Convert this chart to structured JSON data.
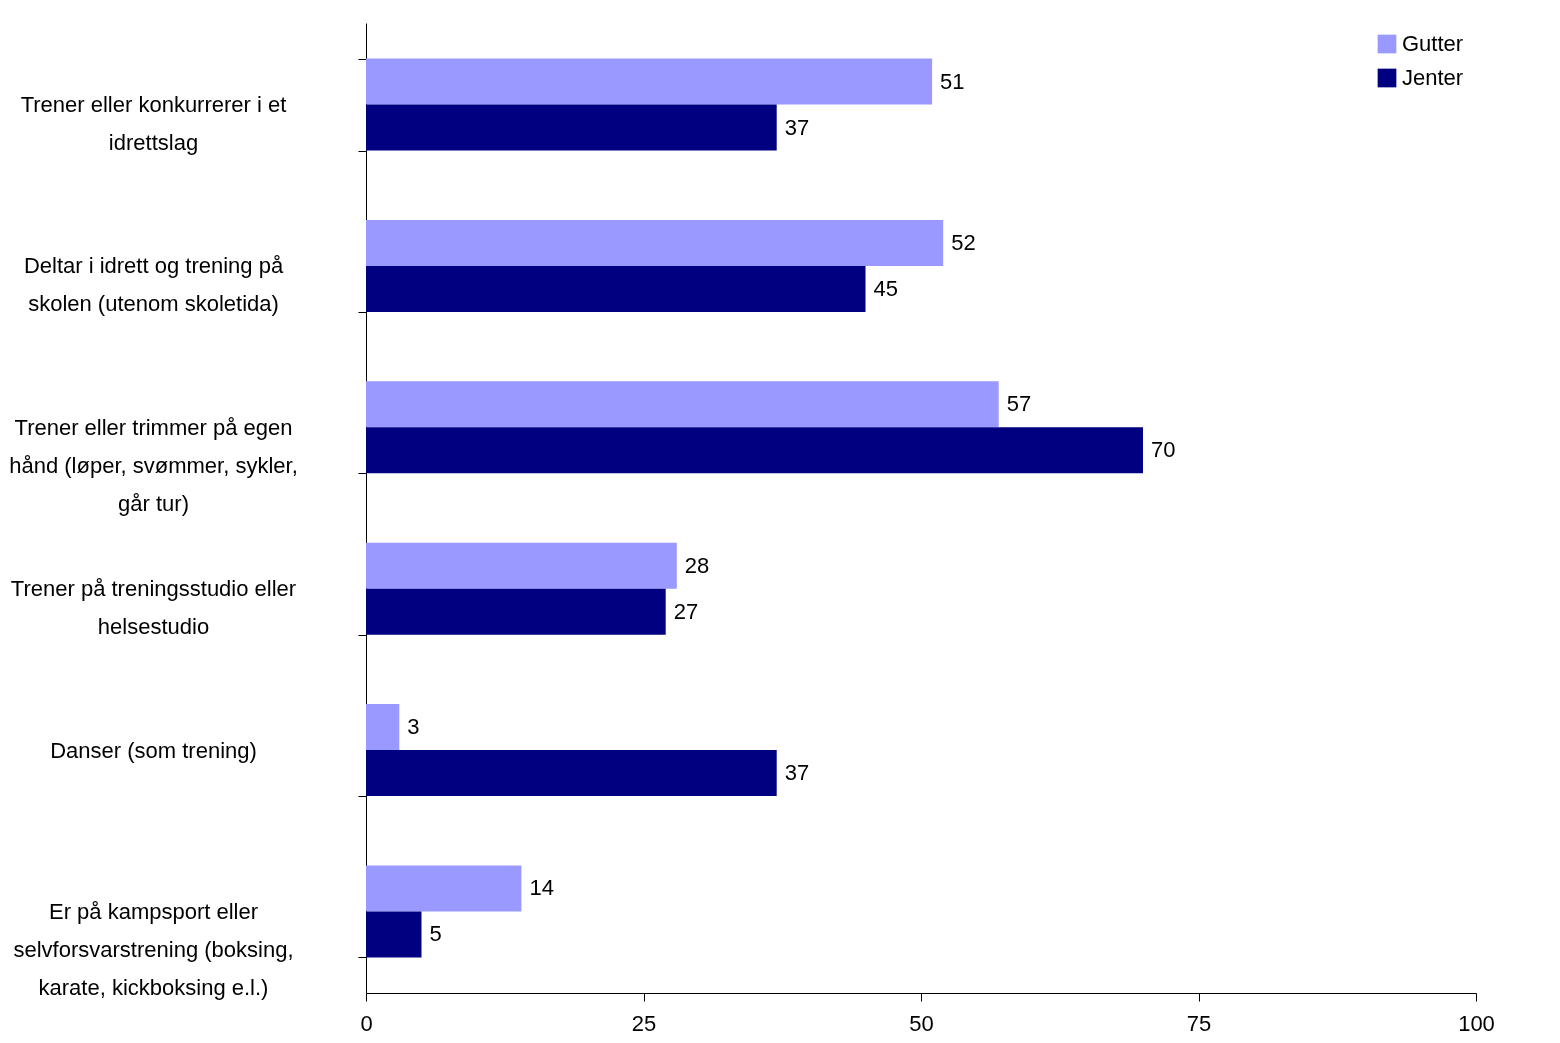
{
  "chart_data": {
    "type": "bar",
    "orientation": "horizontal",
    "categories": [
      "Trener eller konkurrerer i et idrettslag",
      "Deltar i idrett og trening på skolen (utenom skoletida)",
      "Trener eller trimmer på egen hånd (løper, svømmer, sykler, går tur)",
      "Trener på treningsstudio eller helsestudio",
      "Danser (som trening)",
      "Er på kampsport eller selvforsvarstrening (boksing, karate, kickboksing e.l.)"
    ],
    "series": [
      {
        "name": "Gutter",
        "color": "#9999ff",
        "values": [
          51,
          52,
          57,
          28,
          3,
          14
        ]
      },
      {
        "name": "Jenter",
        "color": "#000080",
        "values": [
          37,
          45,
          70,
          27,
          37,
          5
        ]
      }
    ],
    "xlim": [
      0,
      100
    ],
    "xticks": [
      0,
      25,
      50,
      75,
      100
    ],
    "grid": false,
    "legend": "top right",
    "data_labels": true
  }
}
